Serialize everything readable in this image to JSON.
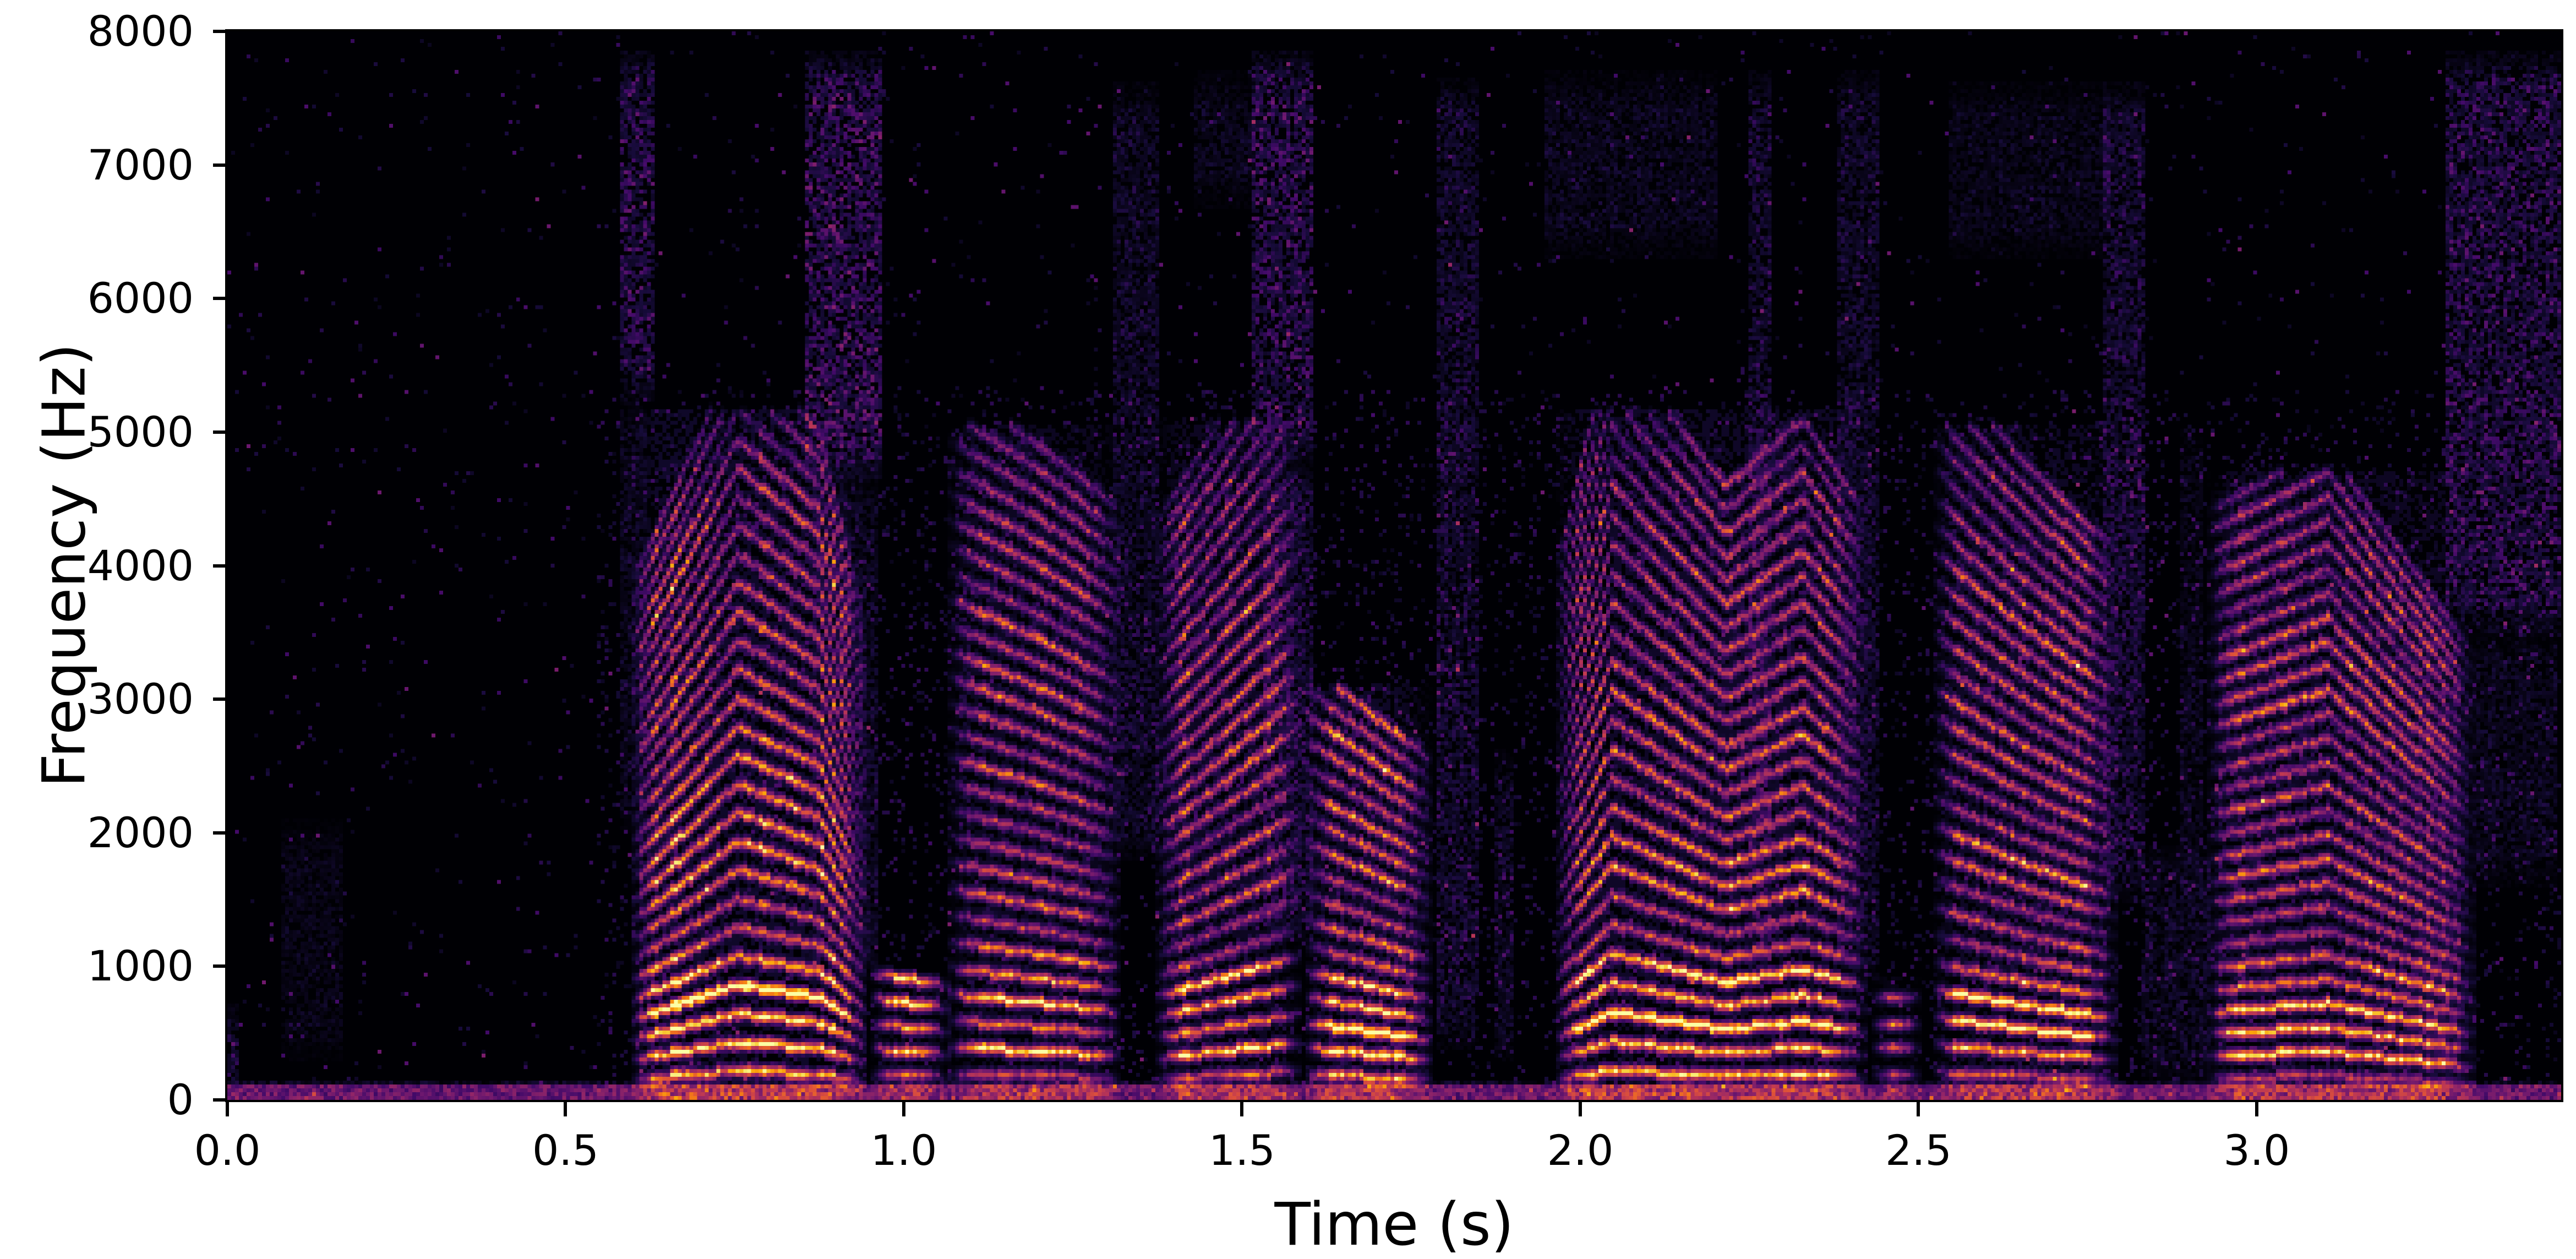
{
  "chart_data": {
    "type": "heatmap",
    "subtype": "audio-spectrogram",
    "title": "",
    "xlabel": "Time (s)",
    "ylabel": "Frequency (Hz)",
    "xlim": [
      0,
      3.45
    ],
    "ylim": [
      0,
      8000
    ],
    "grid": false,
    "legend": false,
    "xticks": [
      {
        "value": 0.0,
        "label": "0.0"
      },
      {
        "value": 0.5,
        "label": "0.5"
      },
      {
        "value": 1.0,
        "label": "1.0"
      },
      {
        "value": 1.5,
        "label": "1.5"
      },
      {
        "value": 2.0,
        "label": "2.0"
      },
      {
        "value": 2.5,
        "label": "2.5"
      },
      {
        "value": 3.0,
        "label": "3.0"
      }
    ],
    "yticks": [
      {
        "value": 0,
        "label": "0"
      },
      {
        "value": 1000,
        "label": "1000"
      },
      {
        "value": 2000,
        "label": "2000"
      },
      {
        "value": 3000,
        "label": "3000"
      },
      {
        "value": 4000,
        "label": "4000"
      },
      {
        "value": 5000,
        "label": "5000"
      },
      {
        "value": 6000,
        "label": "6000"
      },
      {
        "value": 7000,
        "label": "7000"
      },
      {
        "value": 8000,
        "label": "8000"
      }
    ],
    "colormap": {
      "name": "inferno",
      "stops": [
        [
          0.0,
          [
            0,
            0,
            4
          ]
        ],
        [
          0.1,
          [
            22,
            11,
            57
          ]
        ],
        [
          0.2,
          [
            66,
            10,
            104
          ]
        ],
        [
          0.3,
          [
            106,
            23,
            110
          ]
        ],
        [
          0.4,
          [
            147,
            38,
            103
          ]
        ],
        [
          0.5,
          [
            188,
            55,
            84
          ]
        ],
        [
          0.6,
          [
            221,
            81,
            58
          ]
        ],
        [
          0.7,
          [
            243,
            120,
            25
          ]
        ],
        [
          0.8,
          [
            252,
            165,
            10
          ]
        ],
        [
          0.9,
          [
            246,
            215,
            70
          ]
        ],
        [
          1.0,
          [
            252,
            255,
            164
          ]
        ]
      ]
    },
    "render": {
      "time_bins": 606,
      "freq_bins": 277,
      "seed": 11,
      "background_speckle": {
        "probability": 0.015,
        "min": 0.05,
        "max": 0.35
      },
      "active_grain": {
        "t_start": 0.55,
        "t_end": 3.45,
        "f_max": 5300,
        "probability": 0.08,
        "min": 0.04,
        "max": 0.16
      },
      "bottom_band": {
        "f_max": 115,
        "base": 0.18,
        "variation": 0.22,
        "voiced_boost": 0.6
      }
    },
    "spectral_envelope": [
      [
        0,
        0.2
      ],
      [
        120,
        0.55
      ],
      [
        250,
        0.9
      ],
      [
        500,
        1.0
      ],
      [
        900,
        0.95
      ],
      [
        1200,
        0.5
      ],
      [
        1700,
        0.62
      ],
      [
        2300,
        0.55
      ],
      [
        3000,
        0.62
      ],
      [
        3800,
        0.55
      ],
      [
        4500,
        0.42
      ],
      [
        5000,
        0.25
      ],
      [
        5400,
        0.08
      ],
      [
        8000,
        0.02
      ]
    ],
    "voiced_segments": [
      {
        "t0": 0.6,
        "t1": 0.945,
        "f0": 192,
        "f_top": 5150,
        "amp": 1.0,
        "pitch_contour": [
          [
            0,
            0.78
          ],
          [
            0.45,
            1.12
          ],
          [
            0.8,
            1.0
          ],
          [
            1,
            0.7
          ]
        ]
      },
      {
        "t0": 0.955,
        "t1": 1.065,
        "f0": 190,
        "f_top": 950,
        "amp": 0.8,
        "pitch_contour": [
          [
            0,
            1.0
          ],
          [
            1,
            0.9
          ]
        ]
      },
      {
        "t0": 1.07,
        "t1": 1.32,
        "f0": 186,
        "f_top": 5050,
        "amp": 0.78,
        "pitch_contour": [
          [
            0,
            1.06
          ],
          [
            0.5,
            0.98
          ],
          [
            1,
            0.88
          ]
        ]
      },
      {
        "t0": 1.375,
        "t1": 1.585,
        "f0": 182,
        "f_top": 5100,
        "amp": 0.82,
        "pitch_contour": [
          [
            0,
            0.85
          ],
          [
            0.6,
            1.05
          ],
          [
            1,
            1.18
          ]
        ]
      },
      {
        "t0": 1.595,
        "t1": 1.78,
        "f0": 178,
        "f_top": 3100,
        "amp": 0.92,
        "pitch_contour": [
          [
            0,
            1.08
          ],
          [
            1,
            0.84
          ]
        ]
      },
      {
        "t0": 1.965,
        "t1": 2.42,
        "f0": 192,
        "f_top": 5150,
        "amp": 0.95,
        "pitch_contour": [
          [
            0,
            0.8
          ],
          [
            0.18,
            1.14
          ],
          [
            0.55,
            0.92
          ],
          [
            0.8,
            1.02
          ],
          [
            1,
            0.88
          ]
        ]
      },
      {
        "t0": 2.435,
        "t1": 2.5,
        "f0": 190,
        "f_top": 900,
        "amp": 0.62,
        "pitch_contour": [
          [
            0,
            1.0
          ],
          [
            1,
            1.0
          ]
        ]
      },
      {
        "t0": 2.525,
        "t1": 2.79,
        "f0": 186,
        "f_top": 5050,
        "amp": 0.9,
        "pitch_contour": [
          [
            0,
            1.1
          ],
          [
            0.5,
            0.95
          ],
          [
            1,
            0.82
          ]
        ]
      },
      {
        "t0": 2.93,
        "t1": 3.32,
        "f0": 172,
        "f_top": 4700,
        "amp": 0.82,
        "pitch_contour": [
          [
            0,
            0.95
          ],
          [
            0.45,
            1.05
          ],
          [
            1,
            0.72
          ]
        ]
      }
    ],
    "noise_segments": [
      {
        "t0": 0.0,
        "t1": 0.012,
        "f_lo": 0,
        "f_hi": 700,
        "amp": 0.25
      },
      {
        "t0": 0.08,
        "t1": 0.17,
        "f_lo": 300,
        "f_hi": 2100,
        "amp": 0.09
      },
      {
        "t0": 0.585,
        "t1": 0.63,
        "f_lo": 5250,
        "f_hi": 7850,
        "amp": 0.33
      },
      {
        "t0": 0.585,
        "t1": 0.615,
        "f_lo": 2000,
        "f_hi": 5250,
        "amp": 0.12
      },
      {
        "t0": 0.855,
        "t1": 0.965,
        "f_lo": 4650,
        "f_hi": 7850,
        "amp": 0.38
      },
      {
        "t0": 0.87,
        "t1": 0.96,
        "f_lo": 900,
        "f_hi": 4650,
        "amp": 0.15
      },
      {
        "t0": 1.315,
        "t1": 1.375,
        "f_lo": 1800,
        "f_hi": 7600,
        "amp": 0.17
      },
      {
        "t0": 1.43,
        "t1": 1.52,
        "f_lo": 6700,
        "f_hi": 7700,
        "amp": 0.12
      },
      {
        "t0": 1.52,
        "t1": 1.6,
        "f_lo": 4800,
        "f_hi": 7850,
        "amp": 0.33
      },
      {
        "t0": 1.535,
        "t1": 1.6,
        "f_lo": 1200,
        "f_hi": 4800,
        "amp": 0.22
      },
      {
        "t0": 1.79,
        "t1": 1.845,
        "f_lo": 400,
        "f_hi": 7650,
        "amp": 0.2
      },
      {
        "t0": 1.875,
        "t1": 1.9,
        "f_lo": 300,
        "f_hi": 2600,
        "amp": 0.14
      },
      {
        "t0": 1.95,
        "t1": 2.2,
        "f_lo": 6300,
        "f_hi": 7700,
        "amp": 0.13
      },
      {
        "t0": 2.25,
        "t1": 2.28,
        "f_lo": 1000,
        "f_hi": 7700,
        "amp": 0.22
      },
      {
        "t0": 2.38,
        "t1": 2.44,
        "f_lo": 900,
        "f_hi": 7700,
        "amp": 0.18
      },
      {
        "t0": 2.55,
        "t1": 2.78,
        "f_lo": 6300,
        "f_hi": 7600,
        "amp": 0.11
      },
      {
        "t0": 2.775,
        "t1": 2.835,
        "f_lo": 1500,
        "f_hi": 7600,
        "amp": 0.22
      },
      {
        "t0": 2.83,
        "t1": 2.93,
        "f_lo": 100,
        "f_hi": 1900,
        "amp": 0.13
      },
      {
        "t0": 2.89,
        "t1": 2.92,
        "f_lo": 1500,
        "f_hi": 5000,
        "amp": 0.1
      },
      {
        "t0": 3.28,
        "t1": 3.45,
        "f_lo": 3500,
        "f_hi": 7850,
        "amp": 0.3
      },
      {
        "t0": 3.33,
        "t1": 3.44,
        "f_lo": 1600,
        "f_hi": 3500,
        "amp": 0.13
      }
    ]
  }
}
